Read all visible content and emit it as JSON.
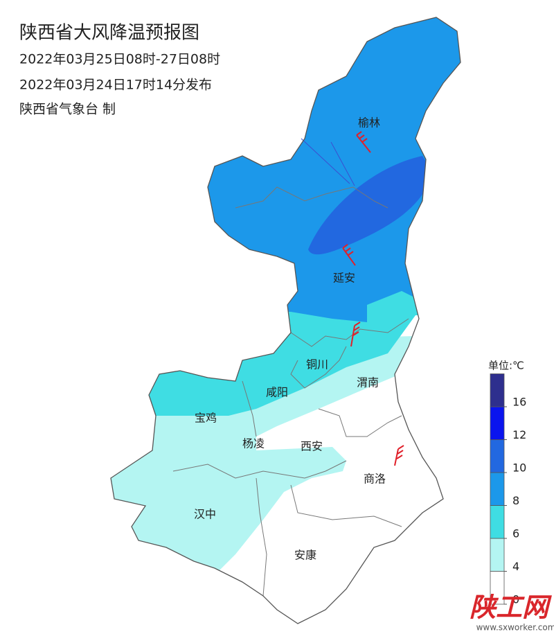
{
  "header": {
    "title": "陕西省大风降温预报图",
    "period": "2022年03月25日08时-27日08时",
    "issued": "2022年03月24日17时14分发布",
    "issuer": "陕西省气象台 制"
  },
  "cities": [
    {
      "label": "榆林"
    },
    {
      "label": "延安"
    },
    {
      "label": "铜川"
    },
    {
      "label": "咸阳"
    },
    {
      "label": "渭南"
    },
    {
      "label": "宝鸡"
    },
    {
      "label": "杨凌"
    },
    {
      "label": "西安"
    },
    {
      "label": "商洛"
    },
    {
      "label": "汉中"
    },
    {
      "label": "安康"
    }
  ],
  "legend": {
    "title": "单位:℃",
    "ticks": [
      0,
      4,
      6,
      8,
      10,
      12,
      16
    ],
    "colors": [
      "#ffffff",
      "#b4f5f2",
      "#3fdde3",
      "#1c98ea",
      "#2268e0",
      "#0a14ee",
      "#2e2f8e"
    ]
  },
  "watermark": {
    "text": "陕工网",
    "url": "www.sxworker.com"
  }
}
